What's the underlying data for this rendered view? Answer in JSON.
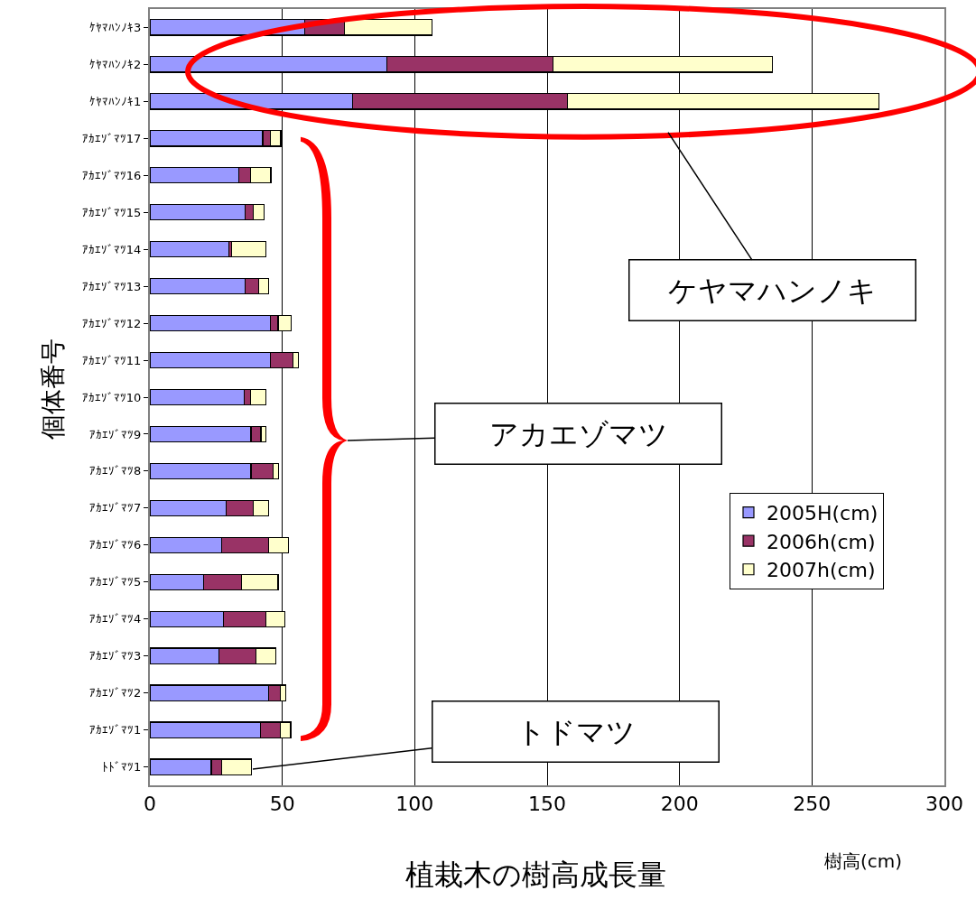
{
  "chart_data": {
    "type": "bar",
    "orientation": "horizontal",
    "stacked": true,
    "title": "植栽木の樹高成長量",
    "xlabel": "樹高(cm)",
    "ylabel": "個体番号",
    "categories": [
      "ｹﾔﾏﾊﾝﾉｷ3",
      "ｹﾔﾏﾊﾝﾉｷ2",
      "ｹﾔﾏﾊﾝﾉｷ1",
      "ｱｶｴｿﾞﾏﾂ17",
      "ｱｶｴｿﾞﾏﾂ16",
      "ｱｶｴｿﾞﾏﾂ15",
      "ｱｶｴｿﾞﾏﾂ14",
      "ｱｶｴｿﾞﾏﾂ13",
      "ｱｶｴｿﾞﾏﾂ12",
      "ｱｶｴｿﾞﾏﾂ11",
      "ｱｶｴｿﾞﾏﾂ10",
      "ｱｶｴｿﾞﾏﾂ9",
      "ｱｶｴｿﾞﾏﾂ8",
      "ｱｶｴｿﾞﾏﾂ7",
      "ｱｶｴｿﾞﾏﾂ6",
      "ｱｶｴｿﾞﾏﾂ5",
      "ｱｶｴｿﾞﾏﾂ4",
      "ｱｶｴｿﾞﾏﾂ3",
      "ｱｶｴｿﾞﾏﾂ2",
      "ｱｶｴｿﾞﾏﾂ1",
      "ﾄﾄﾞﾏﾂ1"
    ],
    "series": [
      {
        "name": "2005H(cm)",
        "color": "#9999ff",
        "values": [
          58.4,
          89.5,
          76.6,
          42.6,
          33.5,
          36.1,
          29.8,
          36.1,
          45.6,
          45.6,
          35.5,
          38.2,
          38.2,
          28.9,
          27.0,
          20.3,
          27.8,
          26.0,
          44.8,
          41.8,
          23.2
        ]
      },
      {
        "name": "2006h(cm)",
        "color": "#993366",
        "values": [
          15.1,
          62.7,
          81.2,
          2.9,
          4.6,
          2.8,
          1.1,
          4.9,
          2.8,
          8.5,
          2.6,
          3.7,
          8.4,
          10.1,
          17.8,
          14.4,
          16.1,
          14.0,
          4.4,
          7.5,
          3.8
        ]
      },
      {
        "name": "2007h(cm)",
        "color": "#ffffcc",
        "values": [
          32.9,
          82.9,
          117.4,
          3.9,
          7.6,
          4.2,
          12.9,
          3.8,
          4.9,
          1.9,
          5.8,
          2.0,
          1.9,
          5.8,
          7.5,
          13.7,
          7.1,
          7.6,
          2.1,
          3.9,
          11.3
        ]
      }
    ],
    "xlim": [
      0,
      300
    ],
    "xticks": [
      0,
      50,
      100,
      150,
      200,
      250,
      300
    ],
    "grid": "x",
    "legend": "right",
    "annotations": [
      "ケヤマハンノキ",
      "アカエゾマツ",
      "トドマツ"
    ]
  }
}
